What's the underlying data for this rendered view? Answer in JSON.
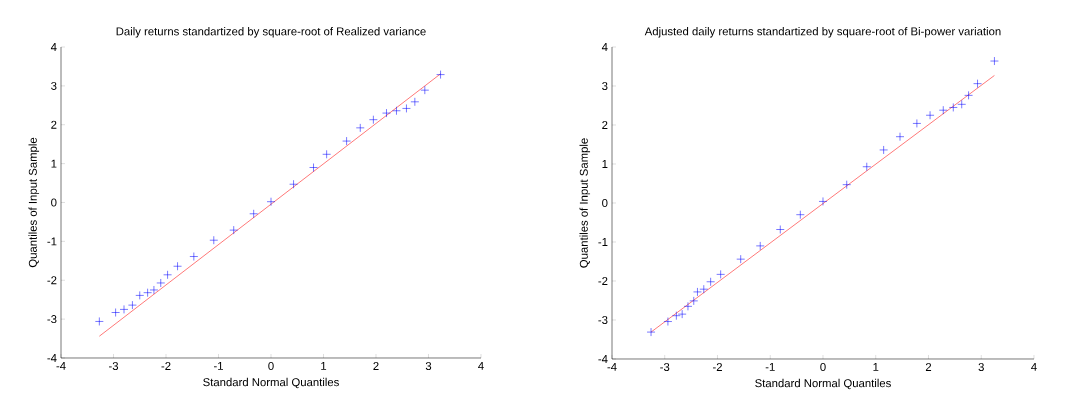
{
  "chart_data": [
    {
      "type": "scatter",
      "title": "Daily returns standartized by square-root of Realized variance",
      "xlabel": "Standard Normal Quantiles",
      "ylabel": "Quantiles of Input Sample",
      "xlim": [
        -4,
        4
      ],
      "ylim": [
        -4,
        4
      ],
      "xticks": [
        -4,
        -3,
        -2,
        -1,
        0,
        1,
        2,
        3,
        4
      ],
      "yticks": [
        -4,
        -3,
        -2,
        -1,
        0,
        1,
        2,
        3,
        4
      ],
      "series": [
        {
          "marker": "cross",
          "color": "#0000ff",
          "x": [
            -3.27,
            -2.96,
            -2.8,
            -2.64,
            -2.5,
            -2.35,
            -2.23,
            -2.1,
            -1.97,
            -1.78,
            -1.47,
            -1.09,
            -0.71,
            -0.33,
            0,
            0.43,
            0.81,
            1.06,
            1.44,
            1.7,
            1.95,
            2.2,
            2.39,
            2.58,
            2.74,
            2.93,
            3.23
          ],
          "values": [
            -3.06,
            -2.83,
            -2.75,
            -2.64,
            -2.39,
            -2.32,
            -2.25,
            -2.07,
            -1.86,
            -1.64,
            -1.39,
            -0.97,
            -0.71,
            -0.29,
            0.02,
            0.47,
            0.9,
            1.24,
            1.58,
            1.92,
            2.13,
            2.3,
            2.36,
            2.42,
            2.59,
            2.89,
            3.29
          ]
        },
        {
          "type": "line",
          "marker": "none",
          "color": "#ff0000",
          "x": [
            -3.27,
            3.23
          ],
          "values": [
            -3.44,
            3.31
          ]
        }
      ]
    },
    {
      "type": "scatter",
      "title": "Adjusted daily returns standartized by square-root of Bi-power variation",
      "xlabel": "Standard Normal Quantiles",
      "ylabel": "Quantiles of Input Sample",
      "xlim": [
        -4,
        4
      ],
      "ylim": [
        -4,
        4
      ],
      "xticks": [
        -4,
        -3,
        -2,
        -1,
        0,
        1,
        2,
        3,
        4
      ],
      "yticks": [
        -4,
        -3,
        -2,
        -1,
        0,
        1,
        2,
        3,
        4
      ],
      "series": [
        {
          "marker": "cross",
          "color": "#0000ff",
          "x": [
            -3.26,
            -2.94,
            -2.78,
            -2.67,
            -2.56,
            -2.45,
            -2.38,
            -2.26,
            -2.13,
            -1.94,
            -1.56,
            -1.19,
            -0.81,
            -0.43,
            0,
            0.45,
            0.83,
            1.15,
            1.46,
            1.78,
            2.03,
            2.28,
            2.47,
            2.63,
            2.76,
            2.93,
            3.25
          ],
          "values": [
            -3.31,
            -3.04,
            -2.89,
            -2.85,
            -2.65,
            -2.51,
            -2.28,
            -2.21,
            -2.02,
            -1.83,
            -1.44,
            -1.1,
            -0.68,
            -0.3,
            0.04,
            0.47,
            0.93,
            1.36,
            1.7,
            2.04,
            2.25,
            2.38,
            2.45,
            2.53,
            2.76,
            3.06,
            3.64
          ]
        },
        {
          "type": "line",
          "marker": "none",
          "color": "#ff0000",
          "x": [
            -3.26,
            3.25
          ],
          "values": [
            -3.31,
            3.27
          ]
        }
      ]
    }
  ]
}
